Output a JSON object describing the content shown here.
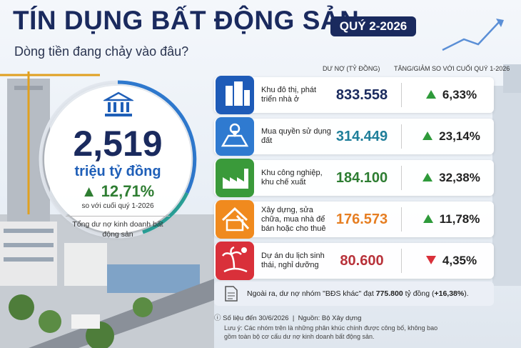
{
  "header": {
    "title": "TÍN DỤNG BẤT ĐỘNG SẢN",
    "badge": "QUÝ 2-2026",
    "subtitle": "Dòng tiền đang chảy vào đâu?"
  },
  "summary": {
    "value": "2,519",
    "unit": "triệu tỷ đồng",
    "change": "12,71%",
    "change_note": "so với cuối quý 1-2026",
    "caption": "Tổng dư nợ kinh doanh bất động sản"
  },
  "table": {
    "columns": [
      "DƯ NỢ (TỶ ĐỒNG)",
      "TĂNG/GIẢM SO VỚI CUỐI QUÝ 1-2026"
    ],
    "rows": [
      {
        "label": "Khu đô thị, phát triển nhà ở",
        "value": "833.558",
        "change": "6,33%",
        "direction": "up",
        "icon_color": "#1e5bb8",
        "value_color": "#1a2a5e"
      },
      {
        "label": "Mua quyền sử dụng đất",
        "value": "314.449",
        "change": "23,14%",
        "direction": "up",
        "icon_color": "#2f7ad0",
        "value_color": "#1f7f9a"
      },
      {
        "label": "Khu công nghiệp, khu chế xuất",
        "value": "184.100",
        "change": "32,38%",
        "direction": "up",
        "icon_color": "#3a9a3a",
        "value_color": "#2e7d32"
      },
      {
        "label": "Xây dựng, sửa chữa, mua nhà để bán hoặc cho thuê",
        "value": "176.573",
        "change": "11,78%",
        "direction": "up",
        "icon_color": "#f08a1e",
        "value_color": "#e67e22"
      },
      {
        "label": "Dự án du lịch sinh thái, nghỉ dưỡng",
        "value": "80.600",
        "change": "4,35%",
        "direction": "down",
        "icon_color": "#d9303a",
        "value_color": "#b8323a"
      }
    ]
  },
  "note": {
    "before": "Ngoài ra, dư nợ nhóm \"BĐS khác\" đạt ",
    "amount": "775.800",
    "middle": " tỷ đồng (",
    "change": "+16,38%",
    "after": ")."
  },
  "footer": {
    "date": "Số liệu đến 30/6/2026",
    "source": "Nguồn: Bộ Xây dựng",
    "disclaimer": "Lưu ý: Các nhóm trên là những phân khúc chính được công bố, không bao gồm toàn bộ cơ cấu dư nợ kinh doanh bất động sản."
  }
}
